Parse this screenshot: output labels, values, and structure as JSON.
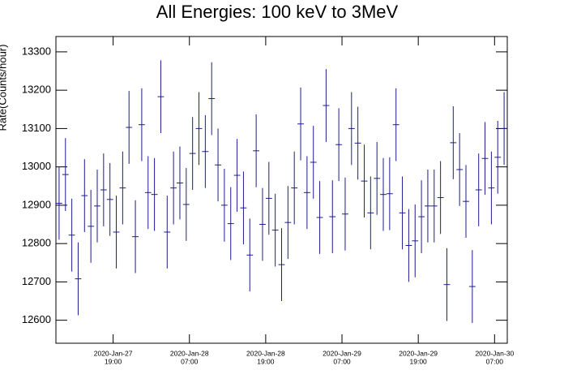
{
  "chart_data": {
    "type": "errorbar",
    "title": "All Energies:  100 keV to 3MeV",
    "y_label": "Rate(Counts/hour)",
    "color": "#1c1c8c",
    "x": [
      "2020-Jan-27 10:30",
      "2020-Jan-27 11:30",
      "2020-Jan-27 12:30",
      "2020-Jan-27 13:30",
      "2020-Jan-27 14:30",
      "2020-Jan-27 15:30",
      "2020-Jan-27 16:30",
      "2020-Jan-27 17:30",
      "2020-Jan-27 18:30",
      "2020-Jan-27 19:30",
      "2020-Jan-27 20:30",
      "2020-Jan-27 21:30",
      "2020-Jan-27 22:30",
      "2020-Jan-27 23:30",
      "2020-Jan-28 00:30",
      "2020-Jan-28 01:30",
      "2020-Jan-28 02:30",
      "2020-Jan-28 03:30",
      "2020-Jan-28 04:30",
      "2020-Jan-28 05:30",
      "2020-Jan-28 06:30",
      "2020-Jan-28 07:30",
      "2020-Jan-28 08:30",
      "2020-Jan-28 09:30",
      "2020-Jan-28 10:30",
      "2020-Jan-28 11:30",
      "2020-Jan-28 12:30",
      "2020-Jan-28 13:30",
      "2020-Jan-28 14:30",
      "2020-Jan-28 15:30",
      "2020-Jan-28 16:30",
      "2020-Jan-28 17:30",
      "2020-Jan-28 18:30",
      "2020-Jan-28 19:30",
      "2020-Jan-28 20:30",
      "2020-Jan-28 21:30",
      "2020-Jan-28 22:30",
      "2020-Jan-28 23:30",
      "2020-Jan-29 00:30",
      "2020-Jan-29 01:30",
      "2020-Jan-29 02:30",
      "2020-Jan-29 03:30",
      "2020-Jan-29 04:30",
      "2020-Jan-29 05:30",
      "2020-Jan-29 06:30",
      "2020-Jan-29 07:30",
      "2020-Jan-29 08:30",
      "2020-Jan-29 09:30",
      "2020-Jan-29 10:30",
      "2020-Jan-29 11:30",
      "2020-Jan-29 12:30",
      "2020-Jan-29 13:30",
      "2020-Jan-29 14:30",
      "2020-Jan-29 15:30",
      "2020-Jan-29 16:30",
      "2020-Jan-29 17:30",
      "2020-Jan-29 18:30",
      "2020-Jan-29 19:30",
      "2020-Jan-29 20:30",
      "2020-Jan-29 21:30",
      "2020-Jan-29 22:30",
      "2020-Jan-29 23:30",
      "2020-Jan-30 00:30",
      "2020-Jan-30 01:30",
      "2020-Jan-30 02:30",
      "2020-Jan-30 03:30",
      "2020-Jan-30 04:30",
      "2020-Jan-30 05:30",
      "2020-Jan-30 06:30",
      "2020-Jan-30 07:30",
      "2020-Jan-30 08:30"
    ],
    "values": [
      12905,
      12980,
      12822,
      12708,
      12925,
      12845,
      12898,
      12940,
      12915,
      12830,
      12945,
      13103,
      12818,
      13110,
      12933,
      12928,
      13183,
      12830,
      12945,
      12958,
      12902,
      13035,
      13100,
      13040,
      13178,
      13005,
      12900,
      12852,
      12978,
      12893,
      12770,
      13042,
      12850,
      12918,
      12835,
      12745,
      12855,
      12945,
      13112,
      12933,
      13012,
      12868,
      13160,
      12870,
      13058,
      12877,
      13100,
      13062,
      12963,
      12880,
      12970,
      12928,
      12930,
      13110,
      12880,
      12795,
      12807,
      12870,
      12898,
      12898,
      12920,
      12693,
      13063,
      12993,
      12910,
      12688,
      12940,
      13022,
      12945,
      13025,
      13100
    ],
    "errors": [
      95,
      95,
      95,
      95,
      95,
      95,
      95,
      95,
      95,
      95,
      95,
      95,
      95,
      95,
      95,
      95,
      95,
      95,
      95,
      95,
      95,
      95,
      95,
      95,
      95,
      95,
      95,
      95,
      95,
      95,
      95,
      95,
      95,
      95,
      95,
      95,
      95,
      95,
      95,
      95,
      95,
      95,
      95,
      95,
      95,
      95,
      95,
      95,
      95,
      95,
      95,
      95,
      95,
      95,
      95,
      95,
      95,
      95,
      95,
      95,
      95,
      95,
      95,
      95,
      95,
      95,
      95,
      95,
      95,
      95,
      95
    ],
    "xlim": [
      "2020-Jan-27 10:00",
      "2020-Jan-30 09:00"
    ],
    "xticks": [
      {
        "date": "2020-Jan-27",
        "time": "19:00"
      },
      {
        "date": "2020-Jan-28",
        "time": "07:00"
      },
      {
        "date": "2020-Jan-28",
        "time": "19:00"
      },
      {
        "date": "2020-Jan-29",
        "time": "07:00"
      },
      {
        "date": "2020-Jan-29",
        "time": "19:00"
      },
      {
        "date": "2020-Jan-30",
        "time": "07:00"
      }
    ],
    "ylim": [
      12540,
      13340
    ],
    "yticks": [
      12600,
      12700,
      12800,
      12900,
      13000,
      13100,
      13200,
      13300
    ]
  }
}
